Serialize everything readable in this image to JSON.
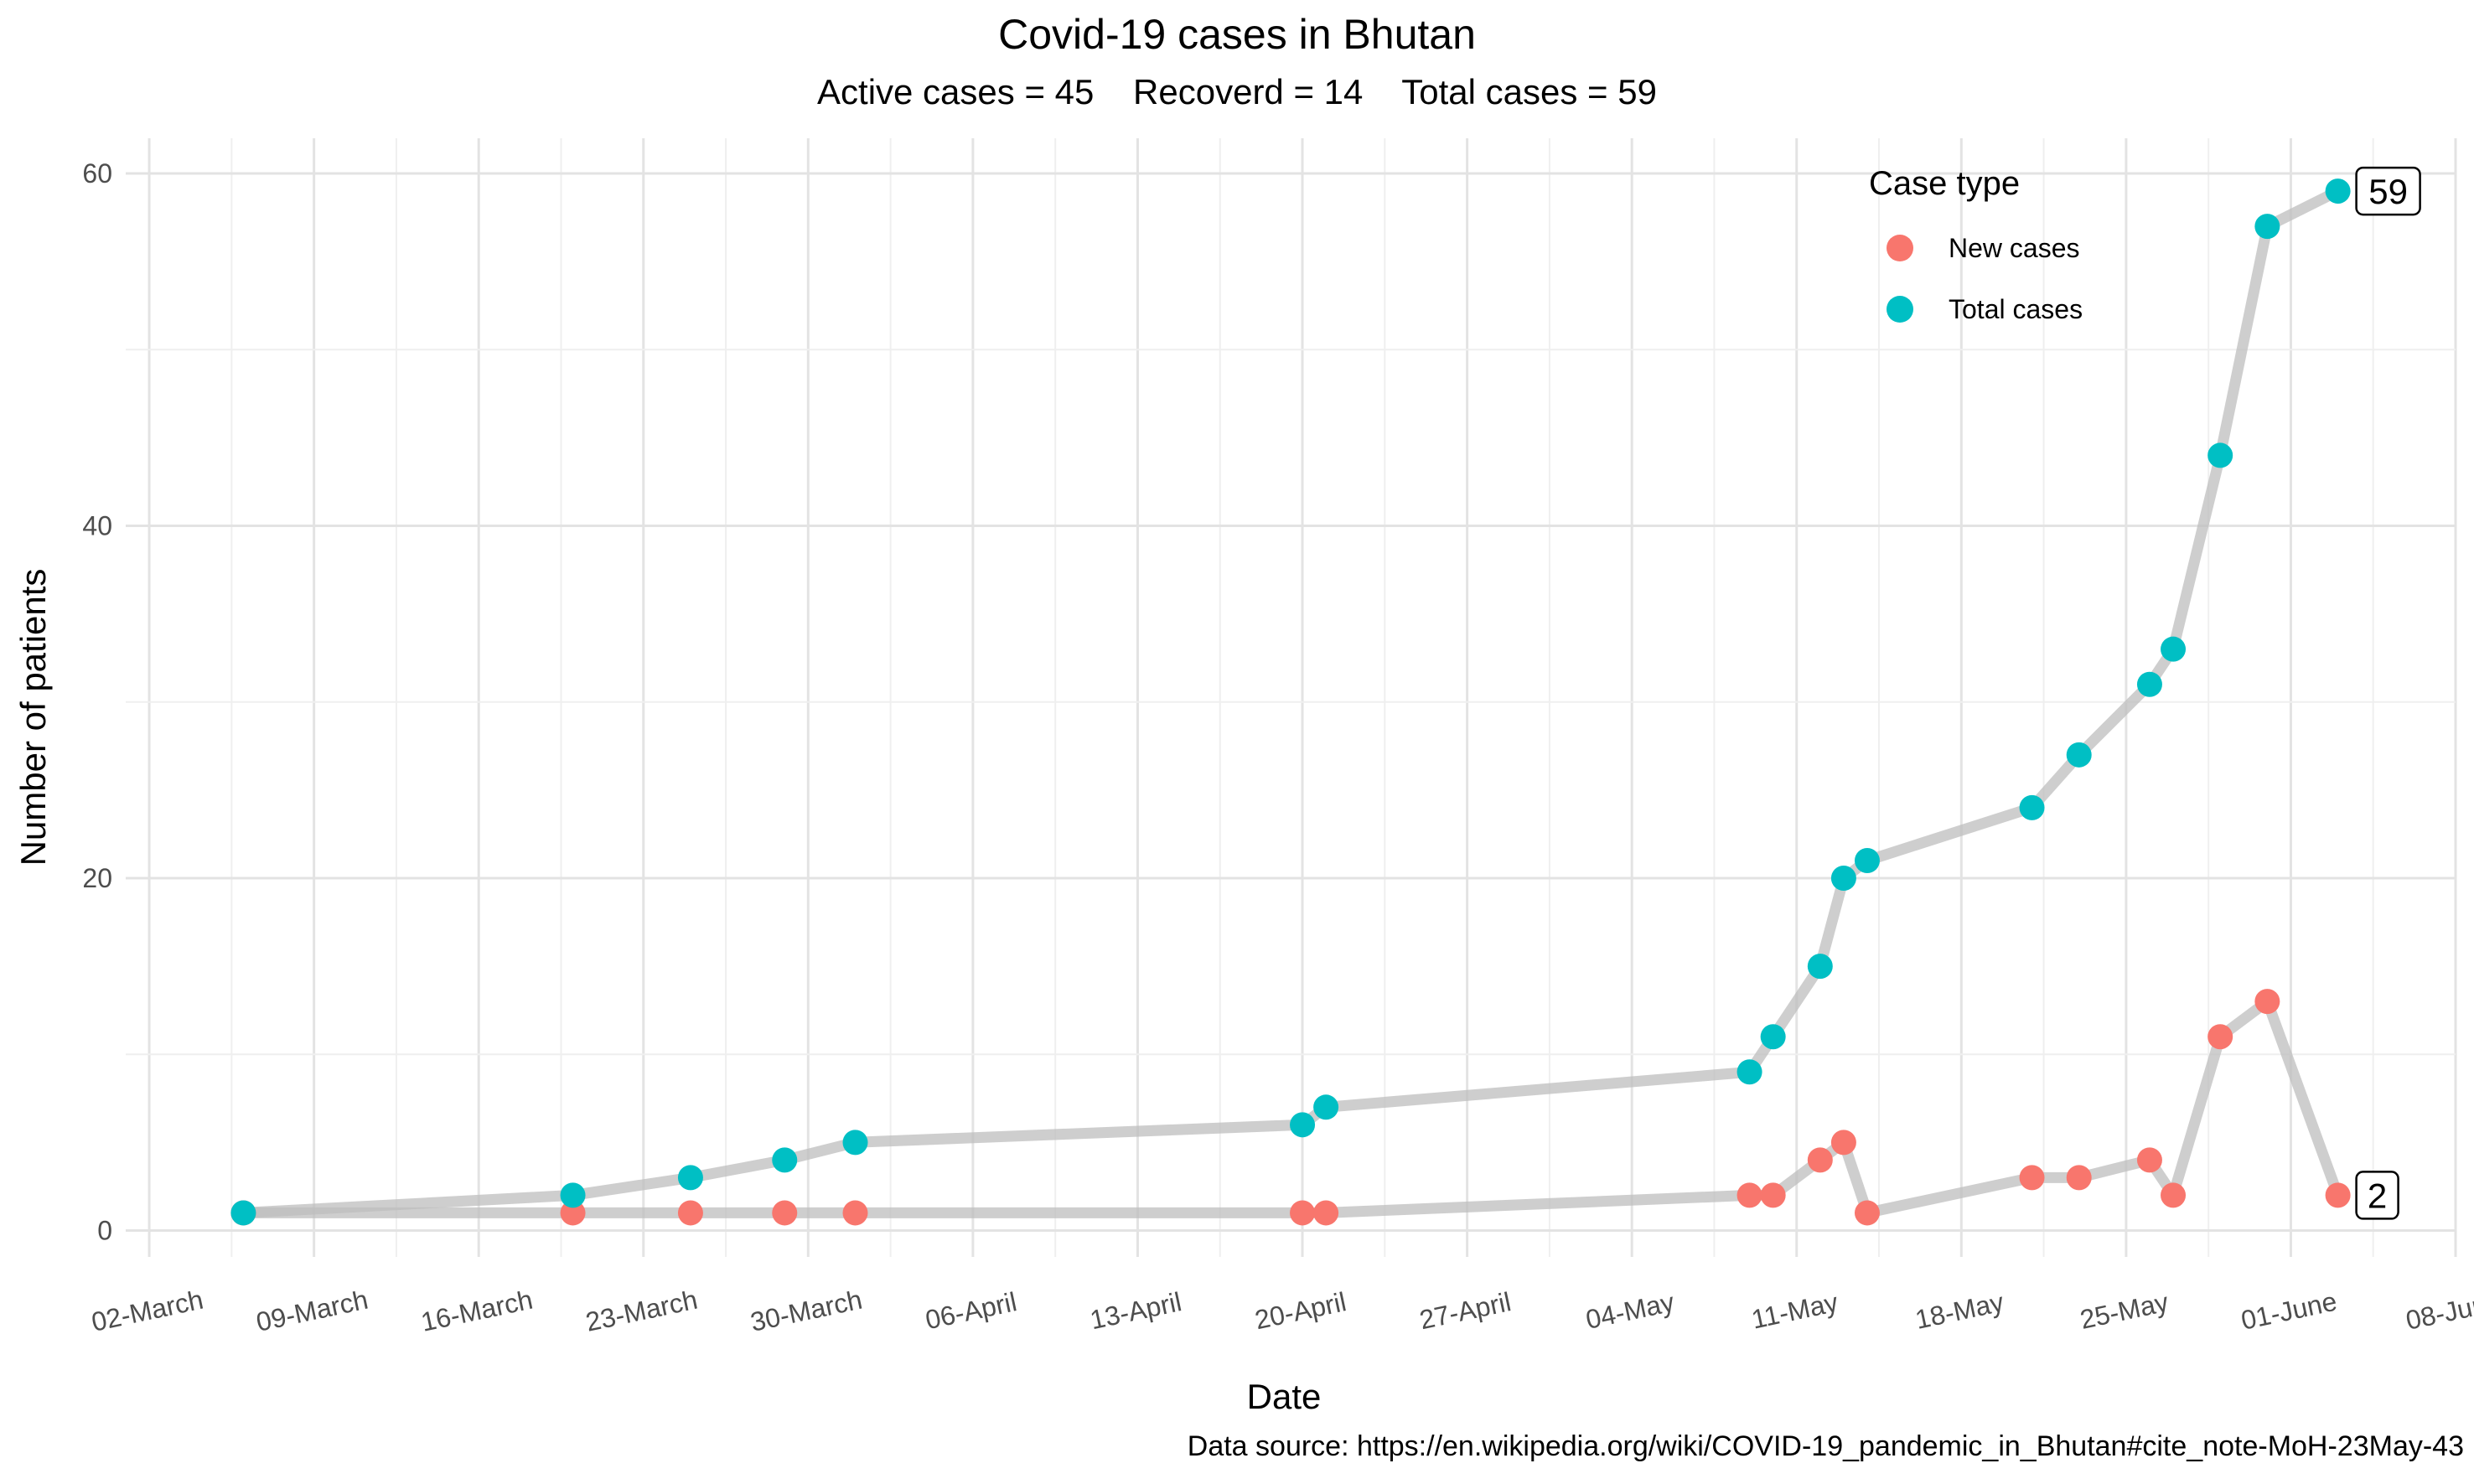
{
  "chart_data": {
    "type": "line",
    "title": "Covid-19 cases in Bhutan",
    "subtitle": "Active cases = 45    Recoverd = 14    Total cases = 59",
    "caption": "Data source: https://en.wikipedia.org/wiki/COVID-19_pandemic_in_Bhutan#cite_note-MoH-23May-43",
    "xlabel": "Date",
    "ylabel": "Number of patients",
    "x_ticks": [
      "02-March",
      "09-March",
      "16-March",
      "23-March",
      "30-March",
      "06-April",
      "13-April",
      "20-April",
      "27-April",
      "04-May",
      "11-May",
      "18-May",
      "25-May",
      "01-June",
      "08-June"
    ],
    "xlim": [
      "2020-03-01",
      "2020-06-08"
    ],
    "ylim": [
      -1.5,
      62
    ],
    "y_ticks": [
      0,
      20,
      40,
      60
    ],
    "grid": true,
    "legend": {
      "title": "Case type",
      "position": "top-right",
      "entries": [
        {
          "name": "New cases",
          "color": "#F8766D"
        },
        {
          "name": "Total cases",
          "color": "#00BFC4"
        }
      ]
    },
    "series": [
      {
        "name": "New cases",
        "color": "#F8766D",
        "points": [
          [
            "2020-03-06",
            1
          ],
          [
            "2020-03-20",
            1
          ],
          [
            "2020-03-25",
            1
          ],
          [
            "2020-03-29",
            1
          ],
          [
            "2020-04-01",
            1
          ],
          [
            "2020-04-20",
            1
          ],
          [
            "2020-04-21",
            1
          ],
          [
            "2020-05-09",
            2
          ],
          [
            "2020-05-10",
            2
          ],
          [
            "2020-05-12",
            4
          ],
          [
            "2020-05-13",
            5
          ],
          [
            "2020-05-14",
            1
          ],
          [
            "2020-05-21",
            3
          ],
          [
            "2020-05-23",
            3
          ],
          [
            "2020-05-26",
            4
          ],
          [
            "2020-05-27",
            2
          ],
          [
            "2020-05-29",
            11
          ],
          [
            "2020-05-31",
            13
          ],
          [
            "2020-06-03",
            2
          ]
        ],
        "end_label": "2"
      },
      {
        "name": "Total cases",
        "color": "#00BFC4",
        "points": [
          [
            "2020-03-06",
            1
          ],
          [
            "2020-03-20",
            2
          ],
          [
            "2020-03-25",
            3
          ],
          [
            "2020-03-29",
            4
          ],
          [
            "2020-04-01",
            5
          ],
          [
            "2020-04-20",
            6
          ],
          [
            "2020-04-21",
            7
          ],
          [
            "2020-05-09",
            9
          ],
          [
            "2020-05-10",
            11
          ],
          [
            "2020-05-12",
            15
          ],
          [
            "2020-05-13",
            20
          ],
          [
            "2020-05-14",
            21
          ],
          [
            "2020-05-21",
            24
          ],
          [
            "2020-05-23",
            27
          ],
          [
            "2020-05-26",
            31
          ],
          [
            "2020-05-27",
            33
          ],
          [
            "2020-05-29",
            44
          ],
          [
            "2020-05-31",
            57
          ],
          [
            "2020-06-03",
            59
          ]
        ],
        "end_label": "59"
      }
    ],
    "line_color": "#BEBEBE"
  }
}
